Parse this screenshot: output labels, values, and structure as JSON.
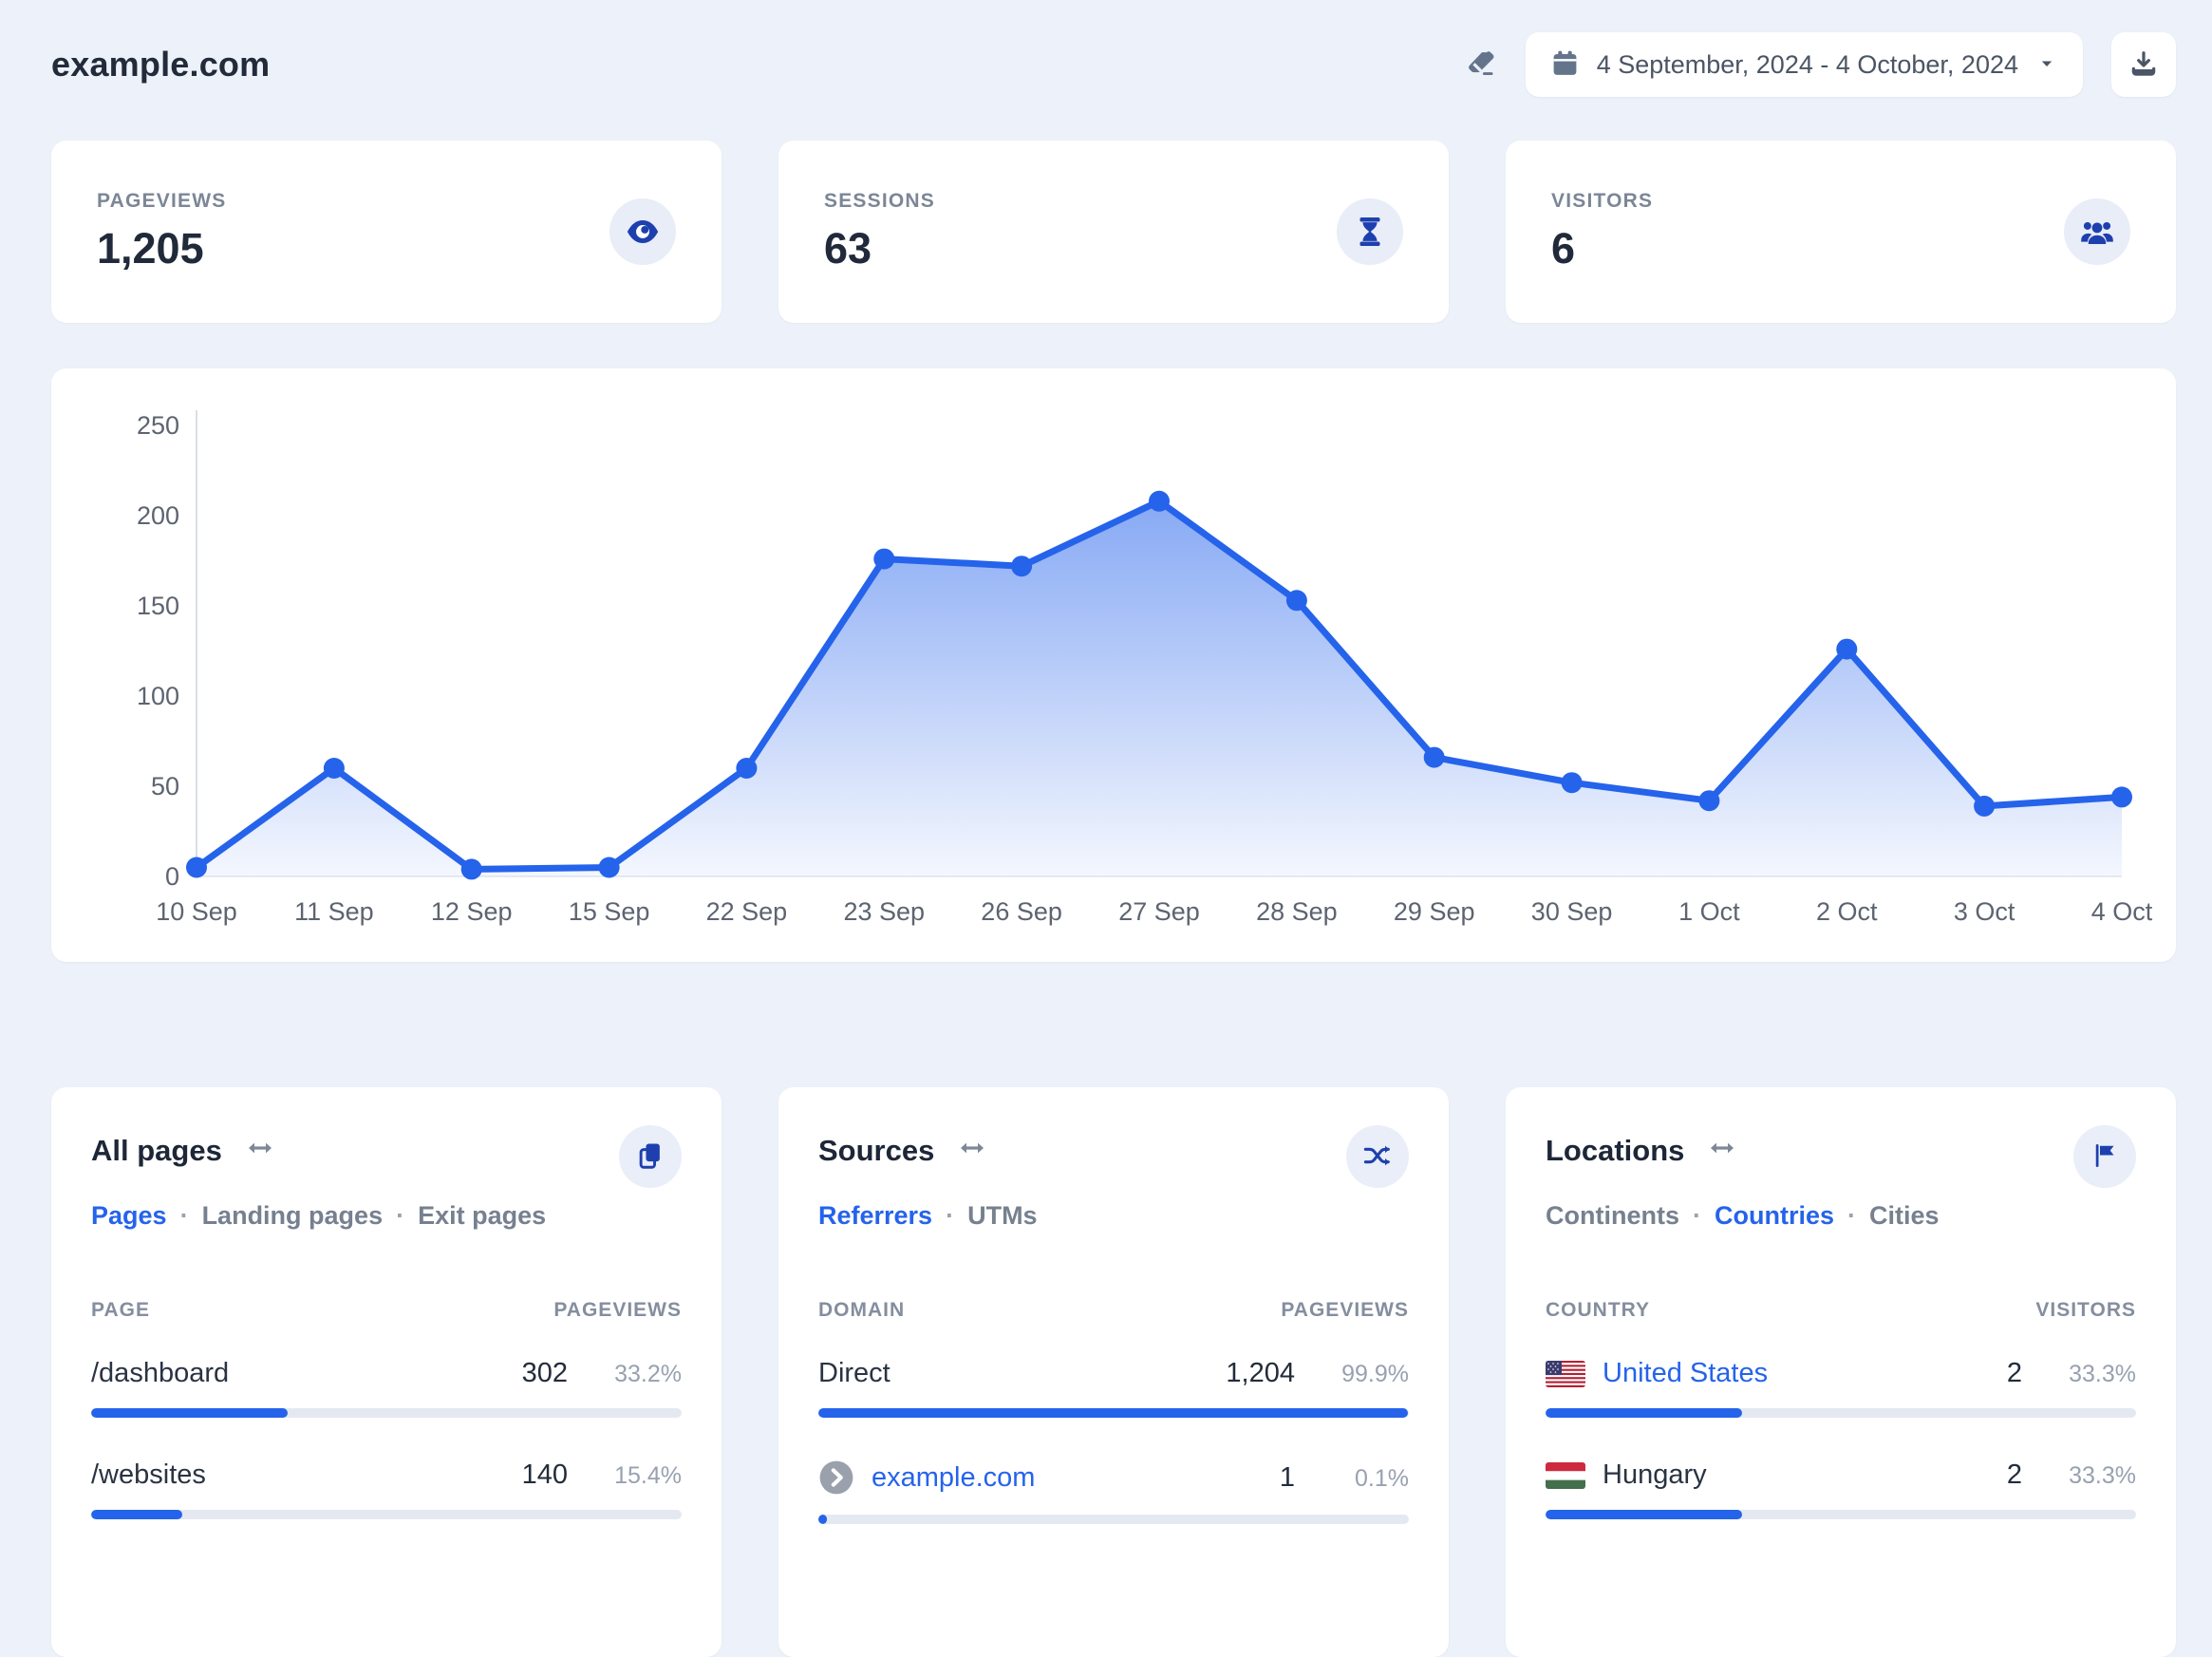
{
  "header": {
    "site_title": "example.com",
    "date_range": "4 September, 2024 - 4 October, 2024",
    "clear_icon": "eraser-icon",
    "calendar_icon": "calendar-icon",
    "caret_icon": "caret-down-icon",
    "download_icon": "download-icon"
  },
  "colors": {
    "accent_blue": "#2563eb",
    "icon_navy": "#1e40af",
    "page_background": "#edf1f9",
    "bar_track": "#e4e9f1"
  },
  "stats": [
    {
      "label": "PAGEVIEWS",
      "value": "1,205",
      "icon": "eye-icon"
    },
    {
      "label": "SESSIONS",
      "value": "63",
      "icon": "hourglass-icon"
    },
    {
      "label": "VISITORS",
      "value": "6",
      "icon": "users-icon"
    }
  ],
  "chart_data": {
    "type": "area",
    "x": [
      "10 Sep",
      "11 Sep",
      "12 Sep",
      "15 Sep",
      "22 Sep",
      "23 Sep",
      "26 Sep",
      "27 Sep",
      "28 Sep",
      "29 Sep",
      "30 Sep",
      "1 Oct",
      "2 Oct",
      "3 Oct",
      "4 Oct"
    ],
    "values": [
      5,
      60,
      4,
      5,
      60,
      176,
      172,
      208,
      153,
      66,
      52,
      42,
      126,
      39,
      44
    ],
    "ylim": [
      0,
      250
    ],
    "yticks": [
      0,
      50,
      100,
      150,
      200,
      250
    ],
    "grid": false,
    "legend": false,
    "line_color": "#2563eb",
    "point_color": "#2563eb",
    "area_fade_opacity": [
      0.55,
      0.05
    ]
  },
  "panels": [
    {
      "title": "All pages",
      "action_icon": "pages-icon",
      "tabs": [
        {
          "label": "Pages",
          "active": true
        },
        {
          "label": "Landing pages",
          "active": false
        },
        {
          "label": "Exit pages",
          "active": false
        }
      ],
      "columns": {
        "left": "PAGE",
        "right": "PAGEVIEWS"
      },
      "rows": [
        {
          "name": "/dashboard",
          "value": "302",
          "pct": "33.2%",
          "bar_pct": 33.2
        },
        {
          "name": "/websites",
          "value": "140",
          "pct": "15.4%",
          "bar_pct": 15.4
        }
      ]
    },
    {
      "title": "Sources",
      "action_icon": "shuffle-icon",
      "tabs": [
        {
          "label": "Referrers",
          "active": true
        },
        {
          "label": "UTMs",
          "active": false
        }
      ],
      "columns": {
        "left": "DOMAIN",
        "right": "PAGEVIEWS"
      },
      "rows": [
        {
          "name": "Direct",
          "value": "1,204",
          "pct": "99.9%",
          "bar_pct": 99.9
        },
        {
          "name": "example.com",
          "value": "1",
          "pct": "0.1%",
          "bar_pct": 1.4,
          "favicon": "chevron-circle-icon"
        }
      ]
    },
    {
      "title": "Locations",
      "action_icon": "flag-icon",
      "tabs": [
        {
          "label": "Continents",
          "active": false
        },
        {
          "label": "Countries",
          "active": true
        },
        {
          "label": "Cities",
          "active": false
        }
      ],
      "columns": {
        "left": "COUNTRY",
        "right": "VISITORS"
      },
      "rows": [
        {
          "name": "United States",
          "value": "2",
          "pct": "33.3%",
          "bar_pct": 33.3,
          "flag": "us"
        },
        {
          "name": "Hungary",
          "value": "2",
          "pct": "33.3%",
          "bar_pct": 33.3,
          "flag": "hu"
        }
      ]
    }
  ]
}
